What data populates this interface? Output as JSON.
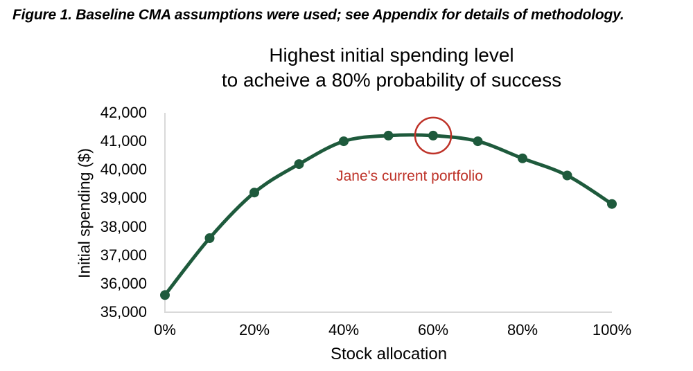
{
  "caption": "Figure 1. Baseline CMA assumptions were used; see Appendix for details of methodology.",
  "chart": {
    "title_line1": "Highest initial spending level",
    "title_line2": "to acheive a 80% probability of success"
  },
  "chart_data": {
    "type": "line",
    "title": "Highest initial spending level to acheive a 80% probability of success",
    "xlabel": "Stock allocation",
    "ylabel": "Initial spending ($)",
    "categories": [
      "0%",
      "10%",
      "20%",
      "30%",
      "40%",
      "50%",
      "60%",
      "70%",
      "80%",
      "90%",
      "100%"
    ],
    "x_values": [
      0,
      10,
      20,
      30,
      40,
      50,
      60,
      70,
      80,
      90,
      100
    ],
    "values": [
      35600,
      37600,
      39200,
      40200,
      41000,
      41200,
      41200,
      41000,
      40400,
      39800,
      38800
    ],
    "xlim": [
      0,
      100
    ],
    "ylim": [
      35000,
      42000
    ],
    "x_ticks": {
      "labels": [
        "0%",
        "20%",
        "40%",
        "60%",
        "80%",
        "100%"
      ],
      "values": [
        0,
        20,
        40,
        60,
        80,
        100
      ]
    },
    "y_ticks": {
      "labels": [
        "35,000",
        "36,000",
        "37,000",
        "38,000",
        "39,000",
        "40,000",
        "41,000",
        "42,000"
      ],
      "values": [
        35000,
        36000,
        37000,
        38000,
        39000,
        40000,
        41000,
        42000
      ]
    },
    "grid": false,
    "legend": "none",
    "annotation": {
      "label": "Jane's current portfolio",
      "x": 60,
      "y": 41200
    },
    "colors": {
      "line": "#1e5a3c",
      "marker": "#1e5a3c",
      "annotation_red": "#be3228",
      "axis_gray": "#d9d9d9",
      "text": "#000000"
    }
  }
}
